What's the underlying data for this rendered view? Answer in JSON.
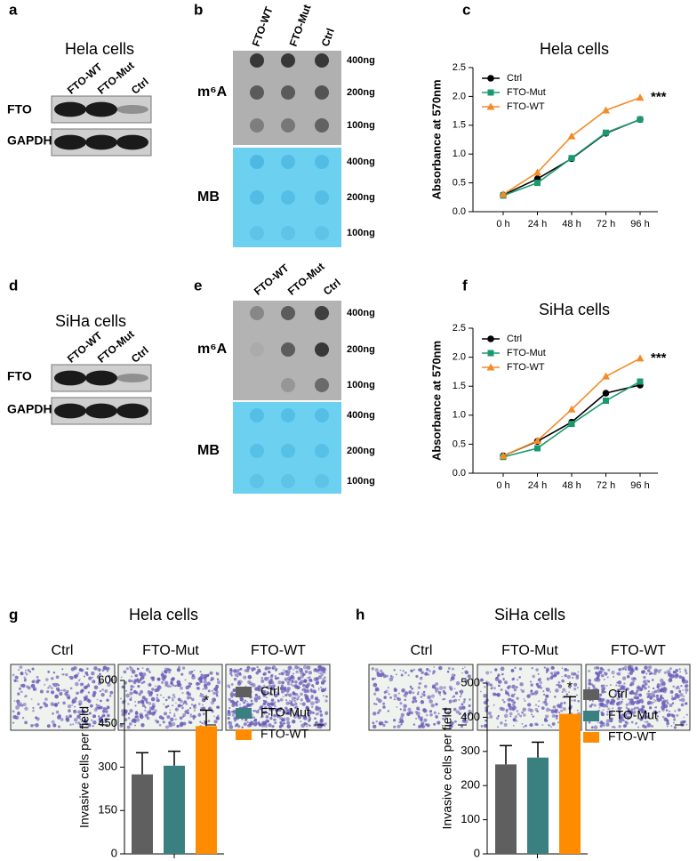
{
  "panels": {
    "a": {
      "letter": "a",
      "title": "Hela cells",
      "lanes": [
        "FTO-WT",
        "FTO-Mut",
        "Ctrl"
      ],
      "rows": [
        "FTO",
        "GAPDH"
      ]
    },
    "b": {
      "letter": "b",
      "lanes": [
        "FTO-WT",
        "FTO-Mut",
        "Ctrl"
      ],
      "upper": "m⁶A",
      "lower": "MB",
      "amounts": [
        "400ng",
        "200ng",
        "100ng"
      ]
    },
    "c": {
      "letter": "c"
    },
    "d": {
      "letter": "d",
      "title": "SiHa cells",
      "lanes": [
        "FTO-WT",
        "FTO-Mut",
        "Ctrl"
      ],
      "rows": [
        "FTO",
        "GAPDH"
      ]
    },
    "e": {
      "letter": "e",
      "lanes": [
        "FTO-WT",
        "FTO-Mut",
        "Ctrl"
      ],
      "upper": "m⁶A",
      "lower": "MB",
      "amounts": [
        "400ng",
        "200ng",
        "100ng"
      ]
    },
    "f": {
      "letter": "f"
    },
    "g": {
      "letter": "g",
      "title": "Hela cells",
      "images": [
        "Ctrl",
        "FTO-Mut",
        "FTO-WT"
      ]
    },
    "h": {
      "letter": "h",
      "title": "SiHa cells",
      "images": [
        "Ctrl",
        "FTO-Mut",
        "FTO-WT"
      ]
    }
  },
  "chart_data": [
    {
      "type": "line",
      "title": "Hela cells",
      "y_label": "Absorbance at 570nm",
      "categories": [
        "0 h",
        "24 h",
        "48 h",
        "72 h",
        "96 h"
      ],
      "ylim": [
        0,
        2.5
      ],
      "yticks": [
        {
          "value": 0,
          "label": "0.0"
        },
        0.5,
        {
          "value": 1,
          "label": "1.0"
        },
        1.5,
        {
          "value": 2,
          "label": "2.0"
        },
        2.5
      ],
      "legend": "upper left",
      "annotation": "***",
      "series": [
        {
          "name": "Ctrl",
          "color": "#000000",
          "marker": "circle",
          "values": [
            0.29,
            0.57,
            0.92,
            1.36,
            1.6
          ]
        },
        {
          "name": "FTO-Mut",
          "color": "#1a9a6c",
          "marker": "square",
          "values": [
            0.28,
            0.5,
            0.93,
            1.37,
            1.6
          ]
        },
        {
          "name": "FTO-WT",
          "color": "#f28c28",
          "marker": "triangle",
          "values": [
            0.3,
            0.68,
            1.31,
            1.76,
            1.98
          ]
        }
      ]
    },
    {
      "type": "line",
      "title": "SiHa cells",
      "y_label": "Absorbance at 570nm",
      "categories": [
        "0 h",
        "24 h",
        "48 h",
        "72 h",
        "96 h"
      ],
      "ylim": [
        0,
        2.5
      ],
      "yticks": [
        {
          "value": 0,
          "label": "0.0"
        },
        0.5,
        {
          "value": 1,
          "label": "1.0"
        },
        1.5,
        {
          "value": 2,
          "label": "2.0"
        },
        2.5
      ],
      "legend": "upper left",
      "annotation": "***",
      "series": [
        {
          "name": "Ctrl",
          "color": "#000000",
          "marker": "circle",
          "values": [
            0.3,
            0.55,
            0.88,
            1.38,
            1.52
          ]
        },
        {
          "name": "FTO-Mut",
          "color": "#1a9a6c",
          "marker": "square",
          "values": [
            0.28,
            0.43,
            0.85,
            1.25,
            1.58
          ]
        },
        {
          "name": "FTO-WT",
          "color": "#f28c28",
          "marker": "triangle",
          "values": [
            0.3,
            0.56,
            1.1,
            1.67,
            1.98
          ]
        }
      ]
    },
    {
      "type": "bar",
      "y_label": "Invasive cells per field",
      "ylim": [
        0,
        600
      ],
      "yticks": [
        0,
        150,
        300,
        450,
        600
      ],
      "legend": "right",
      "annotation": "*",
      "series": [
        {
          "name": "Ctrl",
          "color": "#5f5f5f",
          "values": [
            275
          ],
          "errors": [
            75
          ]
        },
        {
          "name": "FTO-Mut",
          "color": "#3a8080",
          "values": [
            305
          ],
          "errors": [
            50
          ]
        },
        {
          "name": "FTO-WT",
          "color": "#ff8c00",
          "values": [
            442
          ],
          "errors": [
            55
          ]
        }
      ]
    },
    {
      "type": "bar",
      "y_label": "Invasive cells per field",
      "ylim": [
        0,
        500
      ],
      "yticks": [
        0,
        100,
        200,
        300,
        400,
        500
      ],
      "legend": "right",
      "annotation": "*",
      "series": [
        {
          "name": "Ctrl",
          "color": "#5f5f5f",
          "values": [
            262
          ],
          "errors": [
            55
          ]
        },
        {
          "name": "FTO-Mut",
          "color": "#3a8080",
          "values": [
            282
          ],
          "errors": [
            45
          ]
        },
        {
          "name": "FTO-WT",
          "color": "#ff8c00",
          "values": [
            410
          ],
          "errors": [
            50
          ]
        }
      ]
    }
  ]
}
